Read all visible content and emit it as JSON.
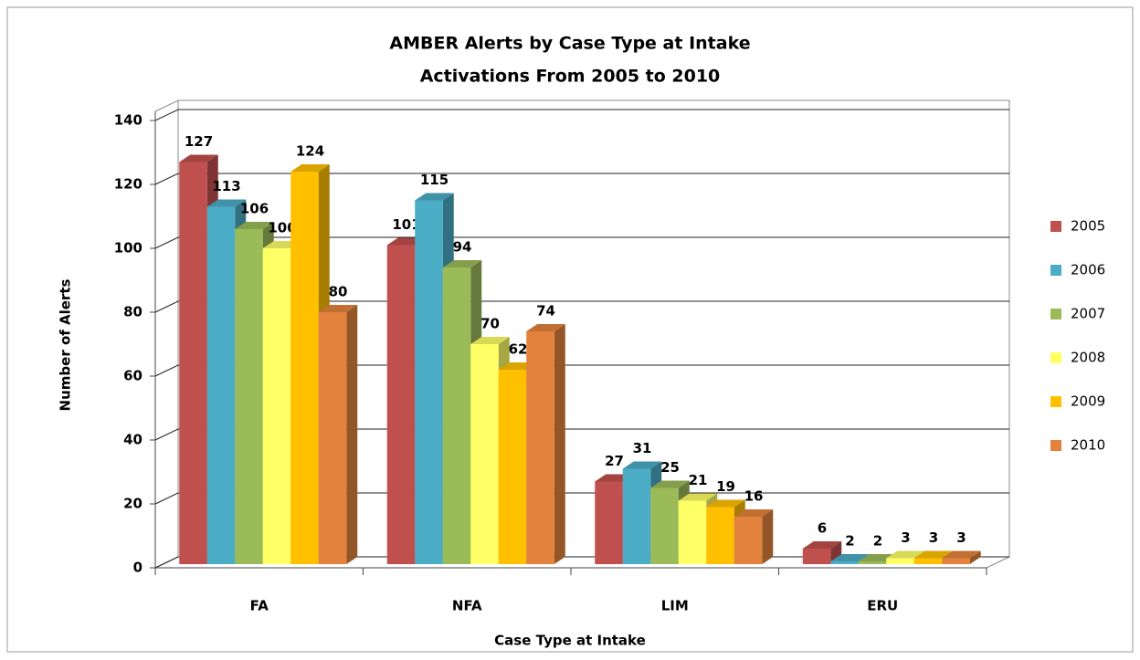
{
  "chart_data": {
    "type": "bar3d",
    "title": [
      "AMBER Alerts by Case Type at Intake",
      "Activations From 2005 to 2010"
    ],
    "xlabel": "Case Type at Intake",
    "ylabel": "Number of Alerts",
    "categories": [
      "FA",
      "NFA",
      "LIM",
      "ERU"
    ],
    "series": [
      {
        "name": "2005",
        "color": "#c0504d",
        "values": [
          127,
          101,
          27,
          6
        ]
      },
      {
        "name": "2006",
        "color": "#4bacc6",
        "values": [
          113,
          115,
          31,
          2
        ]
      },
      {
        "name": "2007",
        "color": "#9bbb59",
        "values": [
          106,
          94,
          25,
          2
        ]
      },
      {
        "name": "2008",
        "color": "#ffff66",
        "values": [
          100,
          70,
          21,
          3
        ]
      },
      {
        "name": "2009",
        "color": "#ffc000",
        "values": [
          124,
          62,
          19,
          3
        ]
      },
      {
        "name": "2010",
        "color": "#e3823c",
        "values": [
          80,
          74,
          16,
          3
        ]
      }
    ],
    "ylim": [
      0,
      140
    ],
    "yticks": [
      0,
      20,
      40,
      60,
      80,
      100,
      120,
      140
    ],
    "grid": true,
    "legend": "right"
  }
}
